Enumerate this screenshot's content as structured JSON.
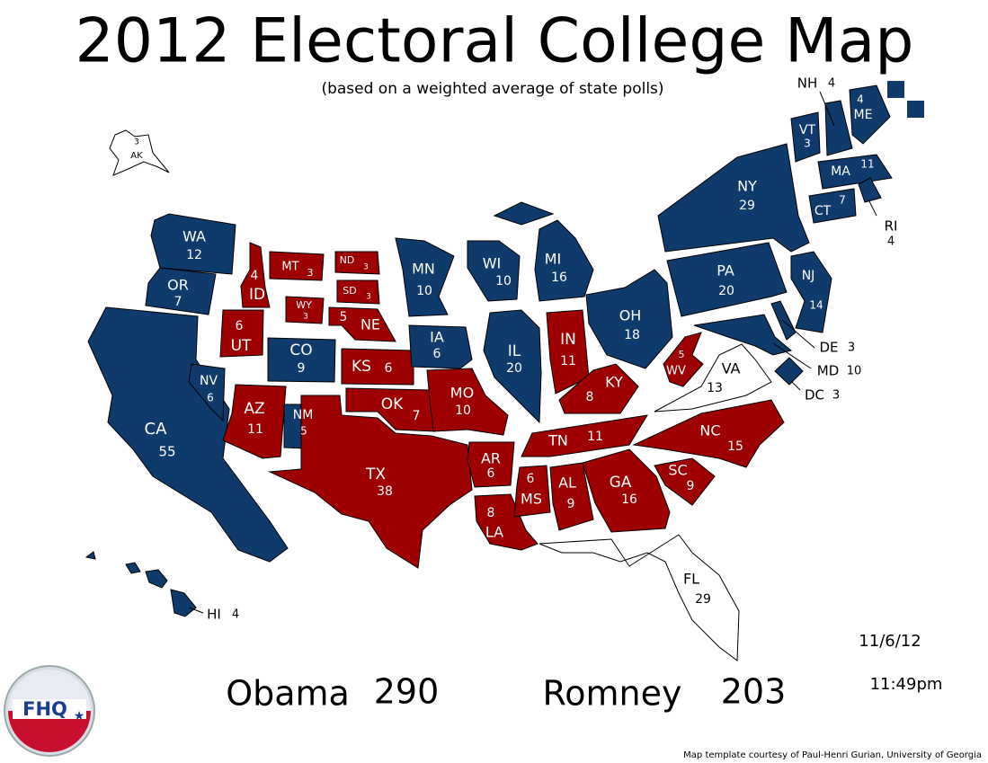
{
  "title": "2012 Electoral College Map",
  "subtitle": "(based on a weighted average of state polls)",
  "states": [
    {
      "abbr": "AK",
      "votes": 3,
      "color": "#ffffff"
    },
    {
      "abbr": "WA",
      "votes": 12,
      "color": "#0f3b6c"
    },
    {
      "abbr": "OR",
      "votes": 7,
      "color": "#0f3b6c"
    },
    {
      "abbr": "CA",
      "votes": 55,
      "color": "#0f3b6c"
    },
    {
      "abbr": "NV",
      "votes": 6,
      "color": "#0f3b6c"
    },
    {
      "abbr": "ID",
      "votes": 4,
      "color": "#9e0000"
    },
    {
      "abbr": "MT",
      "votes": 3,
      "color": "#9e0000"
    },
    {
      "abbr": "WY",
      "votes": 3,
      "color": "#9e0000"
    },
    {
      "abbr": "UT",
      "votes": 6,
      "color": "#9e0000"
    },
    {
      "abbr": "CO",
      "votes": 9,
      "color": "#0f3b6c"
    },
    {
      "abbr": "AZ",
      "votes": 11,
      "color": "#9e0000"
    },
    {
      "abbr": "NM",
      "votes": 5,
      "color": "#0f3b6c"
    },
    {
      "abbr": "ND",
      "votes": 3,
      "color": "#9e0000"
    },
    {
      "abbr": "SD",
      "votes": 3,
      "color": "#9e0000"
    },
    {
      "abbr": "NE",
      "votes": 5,
      "color": "#9e0000"
    },
    {
      "abbr": "KS",
      "votes": 6,
      "color": "#9e0000"
    },
    {
      "abbr": "OK",
      "votes": 7,
      "color": "#9e0000"
    },
    {
      "abbr": "TX",
      "votes": 38,
      "color": "#9e0000"
    },
    {
      "abbr": "MN",
      "votes": 10,
      "color": "#0f3b6c"
    },
    {
      "abbr": "IA",
      "votes": 6,
      "color": "#0f3b6c"
    },
    {
      "abbr": "MO",
      "votes": 10,
      "color": "#9e0000"
    },
    {
      "abbr": "AR",
      "votes": 6,
      "color": "#9e0000"
    },
    {
      "abbr": "LA",
      "votes": 8,
      "color": "#9e0000"
    },
    {
      "abbr": "WI",
      "votes": 10,
      "color": "#0f3b6c"
    },
    {
      "abbr": "IL",
      "votes": 20,
      "color": "#0f3b6c"
    },
    {
      "abbr": "MI",
      "votes": 16,
      "color": "#0f3b6c"
    },
    {
      "abbr": "IN",
      "votes": 11,
      "color": "#9e0000"
    },
    {
      "abbr": "OH",
      "votes": 18,
      "color": "#0f3b6c"
    },
    {
      "abbr": "KY",
      "votes": 8,
      "color": "#9e0000"
    },
    {
      "abbr": "TN",
      "votes": 11,
      "color": "#9e0000"
    },
    {
      "abbr": "MS",
      "votes": 6,
      "color": "#9e0000"
    },
    {
      "abbr": "AL",
      "votes": 9,
      "color": "#9e0000"
    },
    {
      "abbr": "GA",
      "votes": 16,
      "color": "#9e0000"
    },
    {
      "abbr": "FL",
      "votes": 29,
      "color": "#ffffff"
    },
    {
      "abbr": "SC",
      "votes": 9,
      "color": "#9e0000"
    },
    {
      "abbr": "NC",
      "votes": 15,
      "color": "#9e0000"
    },
    {
      "abbr": "VA",
      "votes": 13,
      "color": "#ffffff"
    },
    {
      "abbr": "WV",
      "votes": 5,
      "color": "#9e0000"
    },
    {
      "abbr": "PA",
      "votes": 20,
      "color": "#0f3b6c"
    },
    {
      "abbr": "NY",
      "votes": 29,
      "color": "#0f3b6c"
    },
    {
      "abbr": "VT",
      "votes": 3,
      "color": "#0f3b6c"
    },
    {
      "abbr": "NH",
      "votes": 4,
      "color": "#0f3b6c"
    },
    {
      "abbr": "ME",
      "votes": 4,
      "color": "#0f3b6c"
    },
    {
      "abbr": "MA",
      "votes": 11,
      "color": "#0f3b6c"
    },
    {
      "abbr": "CT",
      "votes": 7,
      "color": "#0f3b6c"
    },
    {
      "abbr": "RI",
      "votes": 4,
      "color": "#0f3b6c"
    },
    {
      "abbr": "NJ",
      "votes": 14,
      "color": "#0f3b6c"
    },
    {
      "abbr": "DE",
      "votes": 3,
      "color": "#0f3b6c"
    },
    {
      "abbr": "MD",
      "votes": 10,
      "color": "#0f3b6c"
    },
    {
      "abbr": "DC",
      "votes": 3,
      "color": "#0f3b6c"
    },
    {
      "abbr": "HI",
      "votes": 4,
      "color": "#0f3b6c"
    }
  ],
  "totals": [
    {
      "name": "Obama",
      "votes": 290
    },
    {
      "name": "Romney",
      "votes": 203
    }
  ],
  "date": "11/6/12",
  "time": "11:49pm",
  "logo": "FHQ",
  "credit": "Map template courtesy of Paul-Henri Gurian, University of Georgia"
}
